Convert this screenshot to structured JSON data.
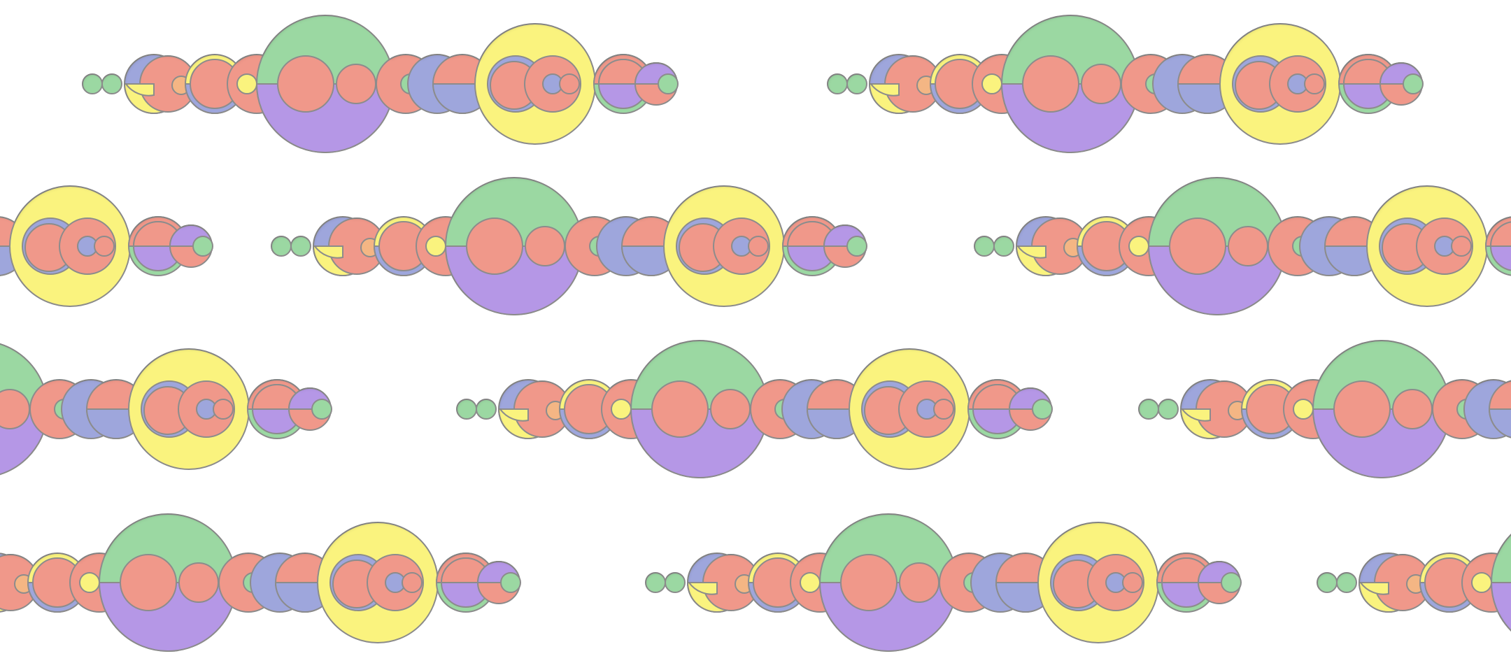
{
  "pattern": {
    "description_kind": "repeating decorative circle-chain motif",
    "background_color": "#ffffff",
    "outline_color": "#8c8c8c",
    "palette": {
      "green": "#9bd8a2",
      "purple": "#b597e6",
      "salmon": "#f0988a",
      "yellow": "#faf37e",
      "blue": "#9ea6dc",
      "orange": "#f4b684"
    },
    "motif_count_visible": 12
  }
}
